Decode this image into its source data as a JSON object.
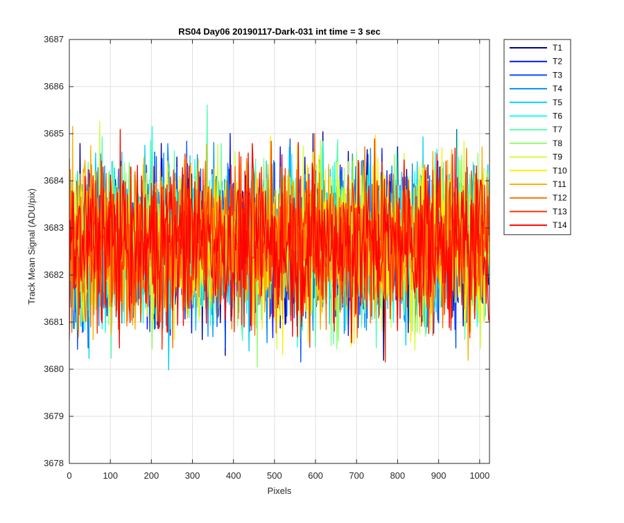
{
  "chart_data": {
    "type": "line",
    "title": "RS04 Day06 20190117-Dark-031 int time = 3 sec",
    "xlabel": "Pixels",
    "ylabel": "Track Mean Signal (ADU/pix)",
    "xlim": [
      0,
      1024
    ],
    "ylim": [
      3678,
      3687
    ],
    "xticks": [
      0,
      100,
      200,
      300,
      400,
      500,
      600,
      700,
      800,
      900,
      1000
    ],
    "yticks": [
      3678,
      3679,
      3680,
      3681,
      3682,
      3683,
      3684,
      3685,
      3686,
      3687
    ],
    "grid": true,
    "legend_position": "outside-top-right",
    "series_mean": 3682.7,
    "series": [
      {
        "name": "T1",
        "color": "#00008f"
      },
      {
        "name": "T2",
        "color": "#0010ff"
      },
      {
        "name": "T3",
        "color": "#0050ff"
      },
      {
        "name": "T4",
        "color": "#0090ff"
      },
      {
        "name": "T5",
        "color": "#00d0ff"
      },
      {
        "name": "T6",
        "color": "#10ffef"
      },
      {
        "name": "T7",
        "color": "#50ffaf"
      },
      {
        "name": "T8",
        "color": "#90ff6f"
      },
      {
        "name": "T9",
        "color": "#cfff30"
      },
      {
        "name": "T10",
        "color": "#ffef00"
      },
      {
        "name": "T11",
        "color": "#ffaf00"
      },
      {
        "name": "T12",
        "color": "#ff7000"
      },
      {
        "name": "T13",
        "color": "#ff3000"
      },
      {
        "name": "T14",
        "color": "#ff0000"
      }
    ]
  }
}
